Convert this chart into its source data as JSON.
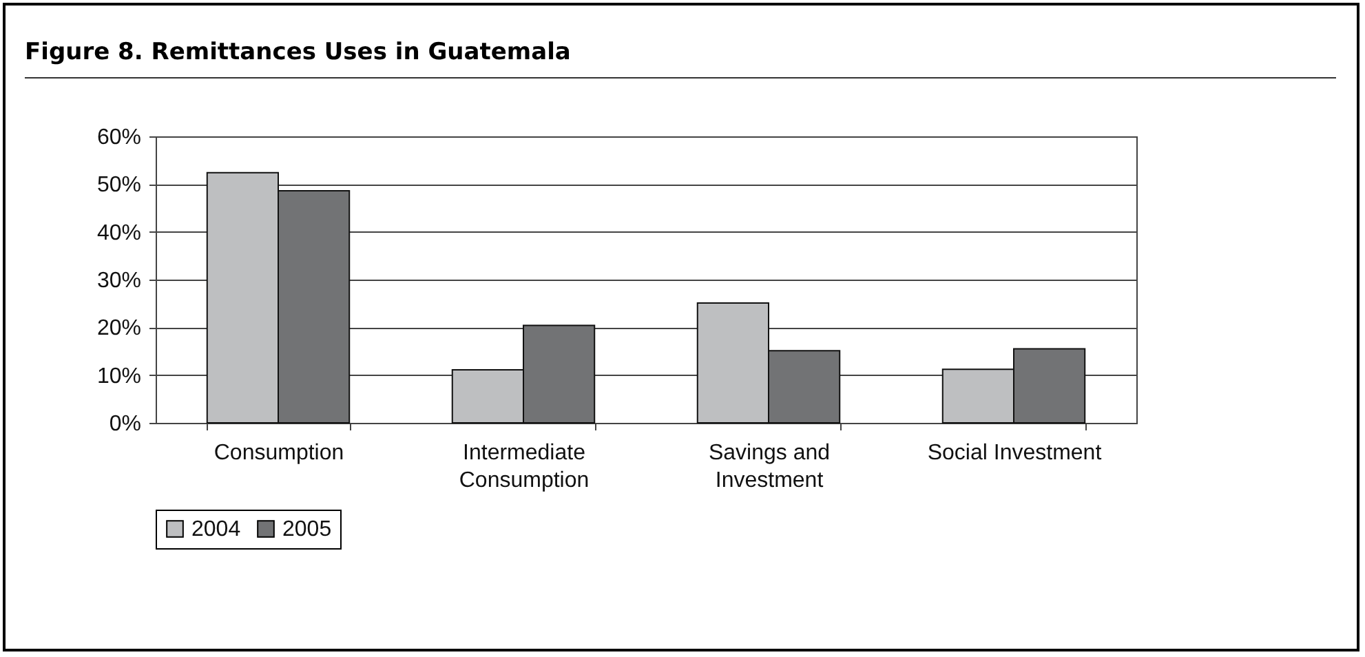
{
  "chart_data": {
    "type": "bar",
    "title": "Figure 8.  Remittances Uses in Guatemala",
    "categories": [
      "Consumption",
      "Intermediate Consumption",
      "Savings and Investment",
      "Social Investment"
    ],
    "series": [
      {
        "name": "2004",
        "color": "#bebfc1",
        "values": [
          52.4,
          11.1,
          25.1,
          11.2
        ]
      },
      {
        "name": "2005",
        "color": "#727375",
        "values": [
          48.6,
          20.4,
          15.1,
          15.5
        ]
      }
    ],
    "ylim": [
      0,
      60
    ],
    "yticks": [
      {
        "value": 0,
        "label": "0%"
      },
      {
        "value": 10,
        "label": "10%"
      },
      {
        "value": 20,
        "label": "20%"
      },
      {
        "value": 30,
        "label": "30%"
      },
      {
        "value": 40,
        "label": "40%"
      },
      {
        "value": 50,
        "label": "50%"
      },
      {
        "value": 60,
        "label": "60%"
      }
    ],
    "grid": "y",
    "legend": "bottom"
  }
}
